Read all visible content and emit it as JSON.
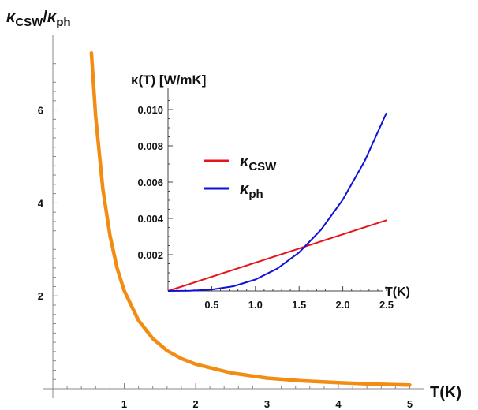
{
  "chart_data": [
    {
      "type": "line",
      "role": "main",
      "ylabel": {
        "symbol": "κ",
        "sub1": "CSW",
        "sep": "/",
        "symbol2": "κ",
        "sub2": "ph"
      },
      "xlabel": "T(K)",
      "xlim": [
        0,
        5.2
      ],
      "ylim": [
        0,
        7.35
      ],
      "xticks": [
        1,
        2,
        3,
        4,
        5
      ],
      "xtick_labels": [
        "1",
        "2",
        "3",
        "4",
        "5"
      ],
      "yticks": [
        2,
        4,
        6
      ],
      "ytick_labels": [
        "2",
        "4",
        "6"
      ],
      "series": [
        {
          "color": "#f28c13",
          "x": [
            0.54,
            0.6,
            0.7,
            0.8,
            0.9,
            1.0,
            1.2,
            1.4,
            1.6,
            1.8,
            2.0,
            2.5,
            3.0,
            3.5,
            4.0,
            4.5,
            5.0
          ],
          "y": [
            7.23,
            5.86,
            4.31,
            3.3,
            2.6,
            2.11,
            1.47,
            1.08,
            0.82,
            0.65,
            0.53,
            0.34,
            0.23,
            0.17,
            0.13,
            0.1,
            0.08
          ]
        }
      ]
    },
    {
      "type": "line",
      "role": "inset",
      "title": "κ(T) [W/mK]",
      "xlabel": "T(K)",
      "xlim": [
        0,
        2.5
      ],
      "ylim": [
        0,
        0.0105
      ],
      "xticks": [
        0.5,
        1.0,
        1.5,
        2.0,
        2.5
      ],
      "xtick_labels": [
        "0.5",
        "1.0",
        "1.5",
        "2.0",
        "2.5"
      ],
      "yticks": [
        0.002,
        0.004,
        0.006,
        0.008,
        0.01
      ],
      "ytick_labels": [
        "0.002",
        "0.004",
        "0.006",
        "0.008",
        "0.010"
      ],
      "legend": "upper-left",
      "series": [
        {
          "legend_symbol": "κ",
          "legend_sub": "CSW",
          "color": "#e8141b",
          "x": [
            0,
            2.5
          ],
          "y": [
            0,
            0.0039
          ]
        },
        {
          "legend_symbol": "κ",
          "legend_sub": "ph",
          "color": "#1010d8",
          "x": [
            0,
            0.25,
            0.5,
            0.75,
            1.0,
            1.25,
            1.5,
            1.75,
            2.0,
            2.25,
            2.5
          ],
          "y": [
            0,
            1e-05,
            8e-05,
            0.00026,
            0.00063,
            0.00123,
            0.00212,
            0.00337,
            0.00503,
            0.00716,
            0.00982
          ]
        }
      ]
    }
  ]
}
